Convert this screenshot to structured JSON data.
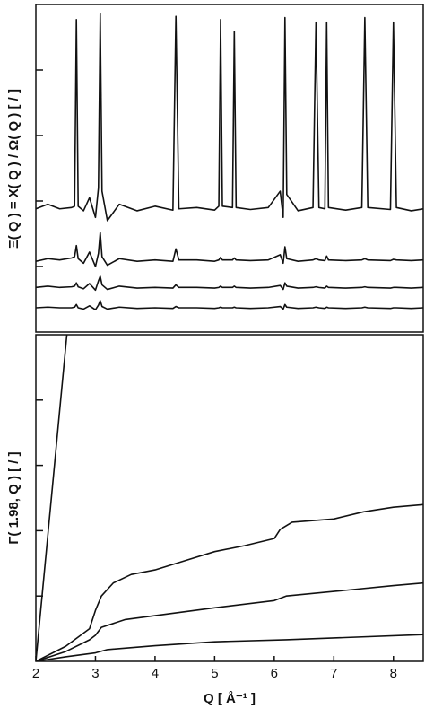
{
  "chart_data": [
    {
      "type": "line",
      "ylabel": "Ξ( Q ) = Χ( Q ) / Ω( Q ) [ / ]",
      "xlim": [
        2,
        8.5
      ],
      "ylim": [
        0,
        5
      ],
      "yticks": [
        1,
        2,
        3,
        4
      ],
      "x": [
        2.0,
        2.2,
        2.4,
        2.6,
        2.65,
        2.68,
        2.71,
        2.8,
        2.9,
        3.0,
        3.05,
        3.08,
        3.11,
        3.2,
        3.4,
        3.7,
        4.0,
        4.3,
        4.35,
        4.4,
        4.7,
        5.0,
        5.07,
        5.1,
        5.13,
        5.3,
        5.33,
        5.36,
        5.6,
        5.9,
        6.1,
        6.15,
        6.18,
        6.21,
        6.4,
        6.65,
        6.7,
        6.75,
        6.85,
        6.88,
        6.91,
        7.2,
        7.47,
        7.52,
        7.57,
        7.95,
        8.0,
        8.05,
        8.3,
        8.5
      ],
      "series": [
        {
          "color": "#111111",
          "values": [
            1.88,
            1.95,
            1.88,
            1.9,
            1.92,
            4.77,
            1.92,
            1.85,
            2.05,
            1.75,
            2.2,
            4.86,
            2.15,
            1.7,
            1.95,
            1.85,
            1.92,
            1.86,
            4.82,
            1.88,
            1.9,
            1.86,
            1.92,
            4.77,
            1.92,
            1.9,
            4.59,
            1.9,
            1.87,
            1.9,
            2.15,
            1.75,
            4.8,
            2.1,
            1.85,
            1.9,
            4.73,
            1.9,
            1.88,
            4.73,
            1.9,
            1.86,
            1.9,
            4.8,
            1.9,
            1.87,
            4.73,
            1.9,
            1.85,
            1.88
          ]
        },
        {
          "color": "#111111",
          "values": [
            1.08,
            1.12,
            1.1,
            1.13,
            1.15,
            1.32,
            1.12,
            1.05,
            1.22,
            1.0,
            1.2,
            1.52,
            1.15,
            1.02,
            1.12,
            1.08,
            1.1,
            1.08,
            1.27,
            1.1,
            1.1,
            1.08,
            1.1,
            1.14,
            1.1,
            1.1,
            1.13,
            1.1,
            1.09,
            1.1,
            1.18,
            1.05,
            1.3,
            1.12,
            1.08,
            1.1,
            1.12,
            1.1,
            1.09,
            1.16,
            1.1,
            1.09,
            1.1,
            1.12,
            1.1,
            1.09,
            1.11,
            1.1,
            1.09,
            1.1
          ]
        },
        {
          "color": "#111111",
          "values": [
            0.68,
            0.7,
            0.68,
            0.69,
            0.7,
            0.75,
            0.69,
            0.66,
            0.74,
            0.64,
            0.78,
            0.85,
            0.72,
            0.65,
            0.7,
            0.67,
            0.68,
            0.67,
            0.72,
            0.68,
            0.68,
            0.67,
            0.68,
            0.7,
            0.68,
            0.68,
            0.7,
            0.68,
            0.67,
            0.68,
            0.71,
            0.65,
            0.75,
            0.7,
            0.67,
            0.68,
            0.69,
            0.68,
            0.67,
            0.7,
            0.68,
            0.67,
            0.68,
            0.69,
            0.68,
            0.67,
            0.68,
            0.68,
            0.67,
            0.68
          ]
        },
        {
          "color": "#111111",
          "values": [
            0.37,
            0.38,
            0.37,
            0.37,
            0.38,
            0.42,
            0.37,
            0.35,
            0.4,
            0.34,
            0.41,
            0.48,
            0.39,
            0.35,
            0.38,
            0.36,
            0.37,
            0.36,
            0.39,
            0.37,
            0.37,
            0.36,
            0.37,
            0.38,
            0.37,
            0.37,
            0.38,
            0.37,
            0.36,
            0.37,
            0.39,
            0.35,
            0.42,
            0.38,
            0.36,
            0.37,
            0.38,
            0.37,
            0.36,
            0.38,
            0.37,
            0.36,
            0.37,
            0.38,
            0.37,
            0.36,
            0.37,
            0.37,
            0.36,
            0.37
          ]
        }
      ]
    },
    {
      "type": "line",
      "ylabel": "Γ( 1.98, Q ) [ / ]",
      "xlabel": "Q [ Å⁻¹ ]",
      "xlim": [
        2,
        8.5
      ],
      "ylim": [
        0,
        5
      ],
      "xticks": [
        2,
        3,
        4,
        5,
        6,
        7,
        8
      ],
      "yticks": [
        1,
        2,
        3,
        4
      ],
      "series": [
        {
          "color": "#111111",
          "x": [
            2.0,
            2.52
          ],
          "values": [
            0,
            5
          ]
        },
        {
          "color": "#111111",
          "x": [
            2.0,
            2.5,
            2.9,
            3.0,
            3.1,
            3.3,
            3.6,
            4.0,
            4.5,
            5.0,
            5.5,
            6.0,
            6.1,
            6.3,
            7.0,
            7.5,
            8.0,
            8.5
          ],
          "values": [
            0,
            0.23,
            0.5,
            0.78,
            1.0,
            1.2,
            1.33,
            1.4,
            1.54,
            1.68,
            1.77,
            1.88,
            2.02,
            2.13,
            2.18,
            2.29,
            2.36,
            2.4
          ]
        },
        {
          "color": "#111111",
          "x": [
            2.0,
            2.5,
            2.9,
            3.0,
            3.1,
            3.5,
            4.0,
            5.0,
            6.0,
            6.2,
            7.0,
            8.0,
            8.5
          ],
          "values": [
            0,
            0.15,
            0.33,
            0.4,
            0.52,
            0.64,
            0.7,
            0.82,
            0.93,
            1.0,
            1.07,
            1.16,
            1.2
          ]
        },
        {
          "color": "#111111",
          "x": [
            2.0,
            2.5,
            3.0,
            3.2,
            4.0,
            5.0,
            6.2,
            8.5
          ],
          "values": [
            0,
            0.07,
            0.13,
            0.18,
            0.24,
            0.3,
            0.33,
            0.41
          ]
        }
      ]
    }
  ]
}
